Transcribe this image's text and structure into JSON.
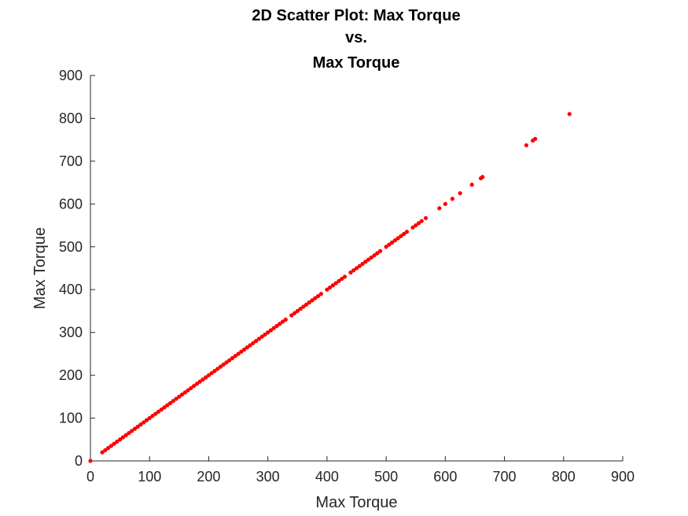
{
  "chart_data": {
    "type": "scatter",
    "title": [
      "2D Scatter Plot: Max Torque",
      "vs.",
      "Max Torque"
    ],
    "xlabel": "Max Torque",
    "ylabel": "Max Torque",
    "xlim": [
      0,
      900
    ],
    "ylim": [
      0,
      900
    ],
    "xticks": [
      "0",
      "100",
      "200",
      "300",
      "400",
      "500",
      "600",
      "700",
      "800",
      "900"
    ],
    "yticks": [
      "0",
      "100",
      "200",
      "300",
      "400",
      "500",
      "600",
      "700",
      "800",
      "900"
    ],
    "grid": false,
    "marker_color": "#ff0000",
    "series": [
      {
        "name": "",
        "x": [
          0,
          20,
          25,
          30,
          35,
          40,
          45,
          50,
          55,
          60,
          65,
          70,
          75,
          80,
          85,
          90,
          95,
          100,
          105,
          110,
          115,
          120,
          125,
          130,
          135,
          140,
          145,
          150,
          155,
          160,
          165,
          170,
          175,
          180,
          185,
          190,
          195,
          200,
          205,
          210,
          215,
          220,
          225,
          230,
          235,
          240,
          245,
          250,
          255,
          260,
          265,
          270,
          275,
          280,
          285,
          290,
          295,
          300,
          305,
          310,
          315,
          320,
          325,
          330,
          340,
          345,
          350,
          355,
          360,
          365,
          370,
          375,
          380,
          385,
          390,
          400,
          405,
          410,
          415,
          420,
          425,
          430,
          440,
          445,
          450,
          455,
          460,
          465,
          470,
          475,
          480,
          485,
          490,
          500,
          505,
          510,
          515,
          520,
          525,
          530,
          535,
          545,
          550,
          555,
          560,
          567,
          590,
          600,
          612,
          625,
          645,
          660,
          663,
          737,
          748,
          752,
          810
        ],
        "y": [
          0,
          20,
          25,
          30,
          35,
          40,
          45,
          50,
          55,
          60,
          65,
          70,
          75,
          80,
          85,
          90,
          95,
          100,
          105,
          110,
          115,
          120,
          125,
          130,
          135,
          140,
          145,
          150,
          155,
          160,
          165,
          170,
          175,
          180,
          185,
          190,
          195,
          200,
          205,
          210,
          215,
          220,
          225,
          230,
          235,
          240,
          245,
          250,
          255,
          260,
          265,
          270,
          275,
          280,
          285,
          290,
          295,
          300,
          305,
          310,
          315,
          320,
          325,
          330,
          340,
          345,
          350,
          355,
          360,
          365,
          370,
          375,
          380,
          385,
          390,
          400,
          405,
          410,
          415,
          420,
          425,
          430,
          440,
          445,
          450,
          455,
          460,
          465,
          470,
          475,
          480,
          485,
          490,
          500,
          505,
          510,
          515,
          520,
          525,
          530,
          535,
          545,
          550,
          555,
          560,
          567,
          590,
          600,
          612,
          625,
          645,
          660,
          663,
          737,
          748,
          752,
          810
        ]
      }
    ]
  }
}
